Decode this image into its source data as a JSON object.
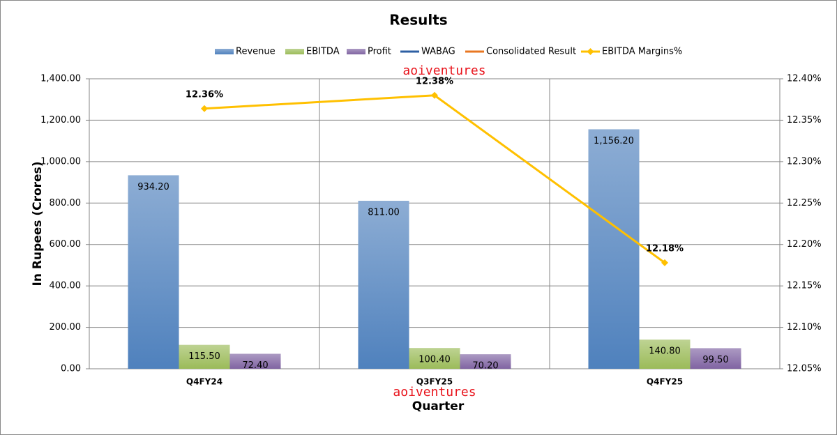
{
  "chart_data": {
    "type": "bar",
    "title": "Results",
    "categories": [
      "Q4FY24",
      "Q3FY25",
      "Q4FY25"
    ],
    "series": [
      {
        "name": "Revenue",
        "color": "#4f81bd",
        "values": [
          934.2,
          811,
          1156.2
        ],
        "value_labels": [
          "934.20",
          "811.00",
          "1,156.20"
        ]
      },
      {
        "name": "EBITDA",
        "color": "#9bbb59",
        "values": [
          115.5,
          100.4,
          140.8
        ],
        "value_labels": [
          "115.50",
          "100.40",
          "140.80"
        ]
      },
      {
        "name": "Profit",
        "color": "#8064a2",
        "values": [
          72.4,
          70.2,
          99.5
        ],
        "value_labels": [
          "72.40",
          "70.20",
          "99.50"
        ]
      },
      {
        "name": "WABAG",
        "color": "#2e5fa3",
        "type": "line",
        "values": [
          null,
          null,
          null
        ]
      },
      {
        "name": "Consolidated Result",
        "color": "#e87722",
        "type": "line",
        "values": [
          null,
          null,
          null
        ]
      },
      {
        "name": "EBITDA Margins%",
        "color": "#ffc000",
        "type": "line",
        "axis": "y2",
        "values": [
          12.364,
          12.38,
          12.178
        ],
        "value_labels": [
          "12.36%",
          "12.38%",
          "12.18%"
        ]
      }
    ],
    "ylabel": "In Rupees (Crores)",
    "xlabel": "Quarter",
    "ylim": [
      0,
      1400
    ],
    "yticks": [
      {
        "value": 0,
        "label": "0.00"
      },
      {
        "value": 200,
        "label": "200.00"
      },
      {
        "value": 400,
        "label": "400.00"
      },
      {
        "value": 600,
        "label": "600.00"
      },
      {
        "value": 800,
        "label": "800.00"
      },
      {
        "value": 1000,
        "label": "1,000.00"
      },
      {
        "value": 1200,
        "label": "1,200.00"
      },
      {
        "value": 1400,
        "label": "1,400.00"
      }
    ],
    "y2lim": [
      12.05,
      12.4
    ],
    "y2ticks": [
      {
        "value": 12.05,
        "label": "12.05%"
      },
      {
        "value": 12.1,
        "label": "12.10%"
      },
      {
        "value": 12.15,
        "label": "12.15%"
      },
      {
        "value": 12.2,
        "label": "12.20%"
      },
      {
        "value": 12.25,
        "label": "12.25%"
      },
      {
        "value": 12.3,
        "label": "12.30%"
      },
      {
        "value": 12.35,
        "label": "12.35%"
      },
      {
        "value": 12.4,
        "label": "12.40%"
      }
    ],
    "grid": true,
    "legend": "top",
    "watermarks": [
      "aoiventures",
      "aoiventures"
    ]
  }
}
